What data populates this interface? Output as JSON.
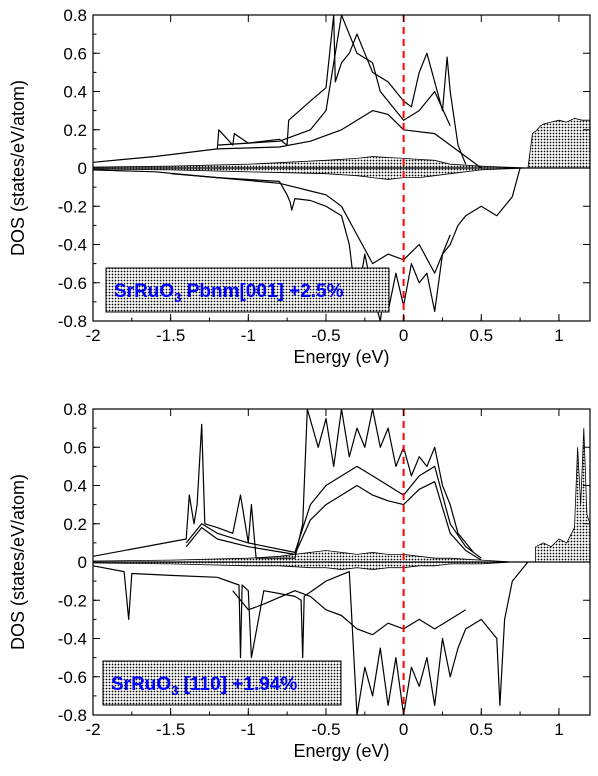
{
  "chart_data": [
    {
      "type": "line",
      "xlabel": "Energy (eV)",
      "ylabel": "DOS (states/eV/atom)",
      "xlim": [
        -2,
        1.2
      ],
      "ylim": [
        -0.8,
        0.8
      ],
      "xticks": [
        -2,
        -1.5,
        -1,
        -0.5,
        0,
        0.5,
        1
      ],
      "xtick_labels": [
        "-2",
        "-1.5",
        "-1",
        "-0.5",
        "0",
        "0.5",
        "1"
      ],
      "yticks": [
        -0.8,
        -0.6,
        -0.4,
        -0.2,
        0,
        0.2,
        0.4,
        0.6,
        0.8
      ],
      "ytick_labels": [
        "-0.8",
        "-0.6",
        "-0.4",
        "-0.2",
        "0",
        "0.2",
        "0.4",
        "0.6",
        "0.8"
      ],
      "label_main": "SrRuO",
      "label_sub": "3",
      "label_rest": " Pbnm[001] +2.5%",
      "fermi_level": 0,
      "colors": {
        "fermi": "#ff0000",
        "label": "#0000ff",
        "curves": "#000000"
      },
      "series": [
        {
          "x": [
            -2,
            -1.6,
            -1.2,
            -1.19,
            -1.1,
            -1.09,
            -1,
            -0.8,
            -0.75,
            -0.74,
            -0.6,
            -0.5,
            -0.45,
            -0.44,
            -0.4,
            -0.35,
            -0.3,
            -0.25,
            -0.2,
            -0.1,
            0,
            0.05,
            0.1,
            0.15,
            0.2,
            0.25,
            0.28,
            0.3,
            0.35,
            0.4
          ],
          "y": [
            0.03,
            0.06,
            0.1,
            0.2,
            0.12,
            0.18,
            0.13,
            0.15,
            0.12,
            0.25,
            0.35,
            0.42,
            0.8,
            0.45,
            0.55,
            0.6,
            0.7,
            0.6,
            0.5,
            0.45,
            0.35,
            0.32,
            0.5,
            0.6,
            0.45,
            0.3,
            0.58,
            0.4,
            0.12,
            0.02
          ]
        },
        {
          "x": [
            -1.2,
            -1,
            -0.8,
            -0.6,
            -0.5,
            -0.4,
            -0.3,
            -0.2,
            -0.15,
            -0.1,
            0,
            0.1,
            0.2,
            0.3
          ],
          "y": [
            0.12,
            0.13,
            0.14,
            0.2,
            0.3,
            0.8,
            0.6,
            0.55,
            0.4,
            0.35,
            0.25,
            0.3,
            0.4,
            0.22
          ]
        },
        {
          "x": [
            -1.2,
            -0.8,
            -0.6,
            -0.4,
            -0.2,
            -0.1,
            0,
            0.2,
            0.4,
            0.5
          ],
          "y": [
            0.1,
            0.11,
            0.14,
            0.2,
            0.3,
            0.28,
            0.2,
            0.18,
            0.06,
            0
          ]
        },
        {
          "x": [
            -2,
            -1.6,
            -1.2,
            -0.8,
            -0.75,
            -0.73,
            -0.72,
            -0.7,
            -0.6,
            -0.5,
            -0.4,
            -0.35,
            -0.32,
            -0.3,
            -0.25,
            -0.2,
            -0.15,
            -0.12,
            -0.1,
            -0.05,
            0,
            0.05,
            0.1,
            0.15,
            0.2,
            0.25,
            0.3,
            0.35,
            0.4,
            0.5,
            0.6,
            0.7,
            0.75
          ],
          "y": [
            -0.01,
            -0.02,
            -0.05,
            -0.07,
            -0.14,
            -0.18,
            -0.22,
            -0.16,
            -0.17,
            -0.2,
            -0.25,
            -0.4,
            -0.6,
            -0.7,
            -0.45,
            -0.65,
            -0.8,
            -0.62,
            -0.75,
            -0.55,
            -0.72,
            -0.5,
            -0.6,
            -0.55,
            -0.75,
            -0.45,
            -0.4,
            -0.3,
            -0.25,
            -0.2,
            -0.25,
            -0.15,
            0
          ]
        },
        {
          "x": [
            -1.5,
            -1.2,
            -0.8,
            -0.7,
            -0.6,
            -0.5,
            -0.4,
            -0.3,
            -0.2,
            -0.1,
            0,
            0.1,
            0.2,
            0.3
          ],
          "y": [
            -0.03,
            -0.05,
            -0.08,
            -0.1,
            -0.12,
            -0.14,
            -0.2,
            -0.35,
            -0.5,
            -0.45,
            -0.48,
            -0.4,
            -0.55,
            -0.35
          ]
        }
      ],
      "filled_series": [
        {
          "x": [
            -2,
            -1.5,
            -1,
            -0.5,
            -0.3,
            -0.2,
            -0.1,
            0,
            0.1,
            0.2,
            0.3,
            0.5,
            0.8
          ],
          "y": [
            0.005,
            0.01,
            0.02,
            0.04,
            0.05,
            0.06,
            0.055,
            0.05,
            0.045,
            0.04,
            0.02,
            0.01,
            0
          ]
        },
        {
          "x": [
            -2,
            -1.5,
            -1,
            -0.5,
            -0.3,
            -0.2,
            -0.1,
            0,
            0.1,
            0.2,
            0.3,
            0.5,
            0.8
          ],
          "y": [
            -0.005,
            -0.01,
            -0.02,
            -0.03,
            -0.04,
            -0.05,
            -0.06,
            -0.05,
            -0.05,
            -0.04,
            -0.03,
            -0.01,
            0
          ]
        },
        {
          "x": [
            0.8,
            0.83,
            0.86,
            0.88,
            0.9,
            0.95,
            1,
            1.05,
            1.1,
            1.15,
            1.2
          ],
          "y": [
            0,
            0.18,
            0.2,
            0.22,
            0.23,
            0.24,
            0.25,
            0.24,
            0.26,
            0.25,
            0.25
          ]
        }
      ]
    },
    {
      "type": "line",
      "xlabel": "Energy (eV)",
      "ylabel": "DOS (states/eV/atom)",
      "xlim": [
        -2,
        1.2
      ],
      "ylim": [
        -0.8,
        0.8
      ],
      "xticks": [
        -2,
        -1.5,
        -1,
        -0.5,
        0,
        0.5,
        1
      ],
      "xtick_labels": [
        "-2",
        "-1.5",
        "-1",
        "-0.5",
        "0",
        "0.5",
        "1"
      ],
      "yticks": [
        -0.8,
        -0.6,
        -0.4,
        -0.2,
        0,
        0.2,
        0.4,
        0.6,
        0.8
      ],
      "ytick_labels": [
        "-0.8",
        "-0.6",
        "-0.4",
        "-0.2",
        "0",
        "0.2",
        "0.4",
        "0.6",
        "0.8"
      ],
      "label_main": "SrRuO",
      "label_sub": "3",
      "label_rest": " [110] +1.94%",
      "fermi_level": 0,
      "colors": {
        "fermi": "#ff0000",
        "label": "#0000ff",
        "curves": "#000000"
      },
      "series": [
        {
          "x": [
            -2,
            -1.4,
            -1.38,
            -1.35,
            -1.33,
            -1.3,
            -1.28,
            -1.2,
            -1.1,
            -1.05,
            -1,
            -0.98,
            -0.95,
            -0.7,
            -0.65,
            -0.62,
            -0.55,
            -0.5,
            -0.45,
            -0.4,
            -0.35,
            -0.3,
            -0.25,
            -0.2,
            -0.15,
            -0.1,
            -0.05,
            0,
            0.05,
            0.1,
            0.15,
            0.2,
            0.25,
            0.3,
            0.35,
            0.45
          ],
          "y": [
            0.03,
            0.12,
            0.35,
            0.2,
            0.3,
            0.72,
            0.2,
            0.18,
            0.15,
            0.35,
            0.1,
            0.3,
            0.02,
            0.02,
            0.2,
            0.8,
            0.6,
            0.75,
            0.5,
            0.8,
            0.55,
            0.7,
            0.6,
            0.8,
            0.6,
            0.7,
            0.5,
            0.6,
            0.45,
            0.55,
            0.5,
            0.6,
            0.4,
            0.3,
            0.15,
            0.05
          ]
        },
        {
          "x": [
            -1.4,
            -1.3,
            -1.2,
            -1,
            -0.7,
            -0.6,
            -0.5,
            -0.4,
            -0.3,
            -0.2,
            -0.1,
            0,
            0.1,
            0.2,
            0.3,
            0.4,
            0.5
          ],
          "y": [
            0.1,
            0.2,
            0.15,
            0.1,
            0.05,
            0.3,
            0.4,
            0.45,
            0.5,
            0.45,
            0.4,
            0.35,
            0.45,
            0.5,
            0.2,
            0.08,
            0.02
          ]
        },
        {
          "x": [
            -1.4,
            -1.3,
            -1.2,
            -1,
            -0.7,
            -0.6,
            -0.5,
            -0.4,
            -0.3,
            -0.2,
            -0.1,
            0,
            0.1,
            0.2,
            0.3,
            0.4,
            0.5
          ],
          "y": [
            0.08,
            0.18,
            0.12,
            0.08,
            0.04,
            0.22,
            0.3,
            0.35,
            0.4,
            0.35,
            0.32,
            0.3,
            0.38,
            0.42,
            0.15,
            0.06,
            0.01
          ]
        },
        {
          "x": [
            -2,
            -1.8,
            -1.77,
            -1.75,
            -1.5,
            -1.2,
            -1.06,
            -1.05,
            -1.04,
            -1,
            -0.98,
            -0.9,
            -0.7,
            -0.66,
            -0.65,
            -0.64,
            -0.5,
            -0.35,
            -0.32,
            -0.3,
            -0.25,
            -0.2,
            -0.15,
            -0.1,
            -0.05,
            0,
            0.05,
            0.1,
            0.15,
            0.2,
            0.25,
            0.3,
            0.35,
            0.4,
            0.5,
            0.6,
            0.62,
            0.65,
            0.7,
            0.75,
            0.8
          ],
          "y": [
            -0.02,
            -0.05,
            -0.3,
            -0.06,
            -0.07,
            -0.08,
            -0.12,
            -0.5,
            -0.12,
            -0.15,
            -0.5,
            -0.15,
            -0.18,
            -0.2,
            -0.5,
            -0.18,
            -0.1,
            -0.05,
            -0.5,
            -0.8,
            -0.55,
            -0.7,
            -0.45,
            -0.75,
            -0.5,
            -0.8,
            -0.55,
            -0.65,
            -0.5,
            -0.75,
            -0.4,
            -0.6,
            -0.45,
            -0.35,
            -0.3,
            -0.4,
            -0.75,
            -0.3,
            -0.1,
            -0.05,
            0
          ]
        },
        {
          "x": [
            -1.1,
            -1,
            -0.9,
            -0.7,
            -0.6,
            -0.5,
            -0.4,
            -0.3,
            -0.2,
            -0.1,
            0,
            0.1,
            0.2,
            0.3,
            0.4
          ],
          "y": [
            -0.15,
            -0.25,
            -0.22,
            -0.15,
            -0.18,
            -0.25,
            -0.28,
            -0.35,
            -0.38,
            -0.32,
            -0.35,
            -0.3,
            -0.35,
            -0.3,
            -0.25
          ]
        }
      ],
      "filled_series": [
        {
          "x": [
            -2,
            -1.5,
            -1,
            -0.8,
            -0.6,
            -0.5,
            -0.4,
            -0.3,
            -0.2,
            -0.1,
            0,
            0.1,
            0.2,
            0.3,
            0.5,
            0.7
          ],
          "y": [
            0.005,
            0.01,
            0.02,
            0.03,
            0.05,
            0.06,
            0.05,
            0.04,
            0.05,
            0.04,
            0.04,
            0.03,
            0.02,
            0.02,
            0.01,
            0
          ]
        },
        {
          "x": [
            -2,
            -1.5,
            -1,
            -0.8,
            -0.6,
            -0.5,
            -0.4,
            -0.3,
            -0.2,
            -0.1,
            0,
            0.1,
            0.2,
            0.3,
            0.5,
            0.7
          ],
          "y": [
            -0.005,
            -0.01,
            -0.02,
            -0.02,
            -0.03,
            -0.03,
            -0.04,
            -0.03,
            -0.04,
            -0.03,
            -0.03,
            -0.02,
            -0.02,
            -0.01,
            -0.01,
            0
          ]
        },
        {
          "x": [
            0.85,
            0.9,
            0.95,
            1,
            1.05,
            1.1,
            1.12,
            1.14,
            1.16,
            1.18,
            1.2
          ],
          "y": [
            0.08,
            0.1,
            0.08,
            0.12,
            0.1,
            0.18,
            0.6,
            0.3,
            0.7,
            0.25,
            0.2
          ]
        }
      ]
    }
  ]
}
